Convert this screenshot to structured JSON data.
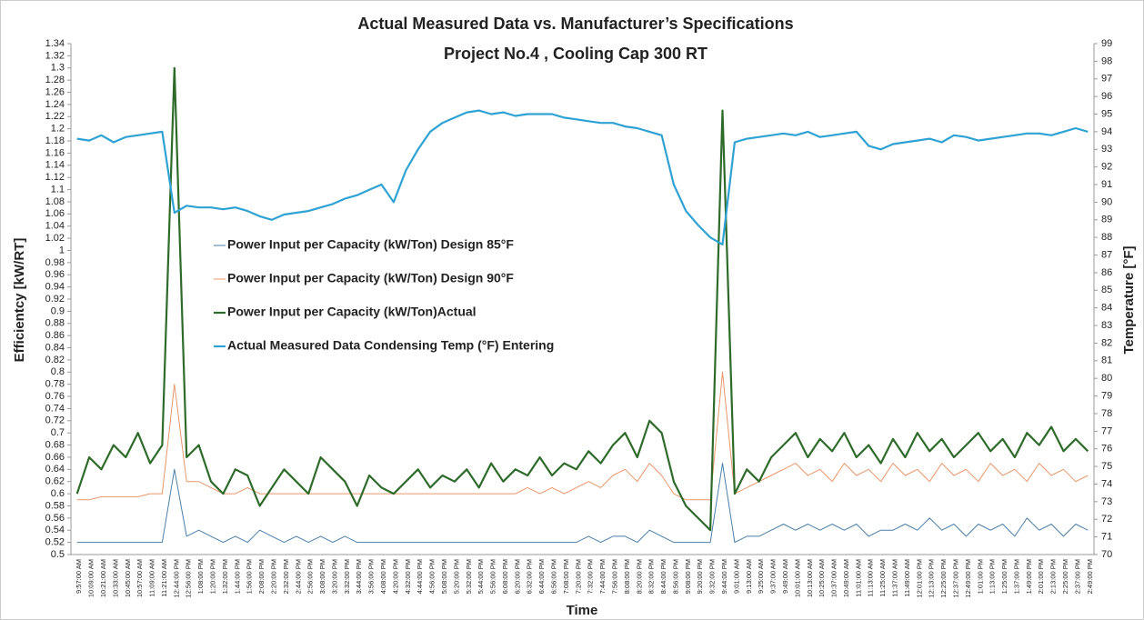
{
  "chart_data": {
    "type": "line",
    "title": "Actual Measured Data vs. Manufacturer’s Specifications",
    "subtitle": "Project No.4 , Cooling Cap 300 RT",
    "xlabel": "Time",
    "ylabel": "Efficientcy [kW/RT]",
    "y2label": "Temperature [°F]",
    "legend": "center-left",
    "categories": [
      "9:57:00 AM",
      "10:09:00 AM",
      "10:21:00 AM",
      "10:33:00 AM",
      "10:45:00 AM",
      "10:57:00 AM",
      "11:09:00 AM",
      "11:21:00 AM",
      "12:44:00 PM",
      "12:56:00 PM",
      "1:08:00 PM",
      "1:20:00 PM",
      "1:32:00 PM",
      "1:44:00 PM",
      "1:56:00 PM",
      "2:08:00 PM",
      "2:20:00 PM",
      "2:32:00 PM",
      "2:44:00 PM",
      "2:56:00 PM",
      "3:08:00 PM",
      "3:20:00 PM",
      "3:32:00 PM",
      "3:44:00 PM",
      "3:56:00 PM",
      "4:08:00 PM",
      "4:20:00 PM",
      "4:32:00 PM",
      "4:44:00 PM",
      "4:56:00 PM",
      "5:08:00 PM",
      "5:20:00 PM",
      "5:32:00 PM",
      "5:44:00 PM",
      "5:56:00 PM",
      "6:08:00 PM",
      "6:20:00 PM",
      "6:32:00 PM",
      "6:44:00 PM",
      "6:56:00 PM",
      "7:08:00 PM",
      "7:20:00 PM",
      "7:32:00 PM",
      "7:44:00 PM",
      "7:56:00 PM",
      "8:08:00 PM",
      "8:20:00 PM",
      "8:32:00 PM",
      "8:44:00 PM",
      "8:56:00 PM",
      "9:08:00 PM",
      "9:20:00 PM",
      "9:32:00 PM",
      "9:44:00 PM",
      "9:01:00 AM",
      "9:13:00 AM",
      "9:25:00 AM",
      "9:37:00 AM",
      "9:49:00 AM",
      "10:01:00 AM",
      "10:13:00 AM",
      "10:25:00 AM",
      "10:37:00 AM",
      "10:49:00 AM",
      "11:01:00 AM",
      "11:13:00 AM",
      "11:25:00 AM",
      "11:37:00 AM",
      "11:49:00 AM",
      "12:01:00 PM",
      "12:13:00 PM",
      "12:25:00 PM",
      "12:37:00 PM",
      "12:49:00 PM",
      "1:01:00 PM",
      "1:13:00 PM",
      "1:25:00 PM",
      "1:37:00 PM",
      "1:49:00 PM",
      "2:01:00 PM",
      "2:13:00 PM",
      "2:25:00 PM",
      "2:37:00 PM",
      "2:49:00 PM"
    ],
    "ylim": [
      0.5,
      1.34
    ],
    "yticks": [
      0.5,
      0.52,
      0.54,
      0.56,
      0.58,
      0.6,
      0.62,
      0.64,
      0.66,
      0.68,
      0.7,
      0.72,
      0.74,
      0.76,
      0.78,
      0.8,
      0.82,
      0.84,
      0.86,
      0.88,
      0.9,
      0.92,
      0.94,
      0.96,
      0.98,
      1,
      1.02,
      1.04,
      1.06,
      1.08,
      1.1,
      1.12,
      1.14,
      1.16,
      1.18,
      1.2,
      1.22,
      1.24,
      1.26,
      1.28,
      1.3,
      1.32,
      1.34
    ],
    "y2lim": [
      70,
      99
    ],
    "y2ticks": [
      70,
      71,
      72,
      73,
      74,
      75,
      76,
      77,
      78,
      79,
      80,
      81,
      82,
      83,
      84,
      85,
      86,
      87,
      88,
      89,
      90,
      91,
      92,
      93,
      94,
      95,
      96,
      97,
      98,
      99
    ],
    "series": [
      {
        "name": "Power Input per Capacity (kW/Ton) Design 85°F",
        "color": "#4a7fa8",
        "width": 1,
        "values": [
          0.52,
          0.52,
          0.52,
          0.52,
          0.52,
          0.52,
          0.52,
          0.52,
          0.64,
          0.53,
          0.54,
          0.53,
          0.52,
          0.53,
          0.52,
          0.54,
          0.53,
          0.52,
          0.53,
          0.52,
          0.53,
          0.52,
          0.53,
          0.52,
          0.52,
          0.52,
          0.52,
          0.52,
          0.52,
          0.52,
          0.52,
          0.52,
          0.52,
          0.52,
          0.52,
          0.52,
          0.52,
          0.52,
          0.52,
          0.52,
          0.52,
          0.52,
          0.53,
          0.52,
          0.53,
          0.53,
          0.52,
          0.54,
          0.53,
          0.52,
          0.52,
          0.52,
          0.52,
          0.65,
          0.52,
          0.53,
          0.53,
          0.54,
          0.55,
          0.54,
          0.55,
          0.54,
          0.55,
          0.54,
          0.55,
          0.53,
          0.54,
          0.54,
          0.55,
          0.54,
          0.56,
          0.54,
          0.55,
          0.53,
          0.55,
          0.54,
          0.55,
          0.53,
          0.56,
          0.54,
          0.55,
          0.53,
          0.55,
          0.54
        ]
      },
      {
        "name": "Power Input per Capacity (kW/Ton) Design 90°F",
        "color": "#e8976a",
        "width": 1,
        "values": [
          0.59,
          0.59,
          0.595,
          0.595,
          0.595,
          0.595,
          0.6,
          0.6,
          0.78,
          0.62,
          0.62,
          0.61,
          0.6,
          0.6,
          0.61,
          0.6,
          0.6,
          0.6,
          0.6,
          0.6,
          0.6,
          0.6,
          0.6,
          0.6,
          0.6,
          0.6,
          0.6,
          0.6,
          0.6,
          0.6,
          0.6,
          0.6,
          0.6,
          0.6,
          0.6,
          0.6,
          0.6,
          0.61,
          0.6,
          0.61,
          0.6,
          0.61,
          0.62,
          0.61,
          0.63,
          0.64,
          0.62,
          0.65,
          0.63,
          0.6,
          0.59,
          0.59,
          0.59,
          0.8,
          0.6,
          0.61,
          0.62,
          0.63,
          0.64,
          0.65,
          0.63,
          0.64,
          0.62,
          0.65,
          0.63,
          0.64,
          0.62,
          0.65,
          0.63,
          0.64,
          0.62,
          0.65,
          0.63,
          0.64,
          0.62,
          0.65,
          0.63,
          0.64,
          0.62,
          0.65,
          0.63,
          0.64,
          0.62,
          0.63
        ]
      },
      {
        "name": "Power Input per Capacity (kW/Ton)Actual",
        "color": "#2e6b2a",
        "width": 2.2,
        "values": [
          0.6,
          0.66,
          0.64,
          0.68,
          0.66,
          0.7,
          0.65,
          0.68,
          1.3,
          0.66,
          0.68,
          0.62,
          0.6,
          0.64,
          0.63,
          0.58,
          0.61,
          0.64,
          0.62,
          0.6,
          0.66,
          0.64,
          0.62,
          0.58,
          0.63,
          0.61,
          0.6,
          0.62,
          0.64,
          0.61,
          0.63,
          0.62,
          0.64,
          0.61,
          0.65,
          0.62,
          0.64,
          0.63,
          0.66,
          0.63,
          0.65,
          0.64,
          0.67,
          0.65,
          0.68,
          0.7,
          0.66,
          0.72,
          0.7,
          0.62,
          0.58,
          0.56,
          0.54,
          1.23,
          0.6,
          0.64,
          0.62,
          0.66,
          0.68,
          0.7,
          0.66,
          0.69,
          0.67,
          0.7,
          0.66,
          0.68,
          0.65,
          0.69,
          0.66,
          0.7,
          0.67,
          0.69,
          0.66,
          0.68,
          0.7,
          0.67,
          0.69,
          0.66,
          0.7,
          0.68,
          0.71,
          0.67,
          0.69,
          0.67
        ]
      },
      {
        "name": "Actual Measured Data Condensing Temp (°F) Entering",
        "color": "#2fa2d4",
        "width": 2.2,
        "axis": "y2",
        "values": [
          93.6,
          93.5,
          93.8,
          93.4,
          93.7,
          93.8,
          93.9,
          94.0,
          89.4,
          89.8,
          89.7,
          89.7,
          89.6,
          89.7,
          89.5,
          89.2,
          89.0,
          89.3,
          89.4,
          89.5,
          89.7,
          89.9,
          90.2,
          90.4,
          90.7,
          91.0,
          90.0,
          91.8,
          93.0,
          94.0,
          94.5,
          94.8,
          95.1,
          95.2,
          95.0,
          95.1,
          94.9,
          95.0,
          95.0,
          95.0,
          94.8,
          94.7,
          94.6,
          94.5,
          94.5,
          94.3,
          94.2,
          94.0,
          93.8,
          91.0,
          89.5,
          88.7,
          88.0,
          87.6,
          93.4,
          93.6,
          93.7,
          93.8,
          93.9,
          93.8,
          94.0,
          93.7,
          93.8,
          93.9,
          94.0,
          93.2,
          93.0,
          93.3,
          93.4,
          93.5,
          93.6,
          93.4,
          93.8,
          93.7,
          93.5,
          93.6,
          93.7,
          93.8,
          93.9,
          93.9,
          93.8,
          94.0,
          94.2,
          94.0
        ]
      }
    ]
  }
}
